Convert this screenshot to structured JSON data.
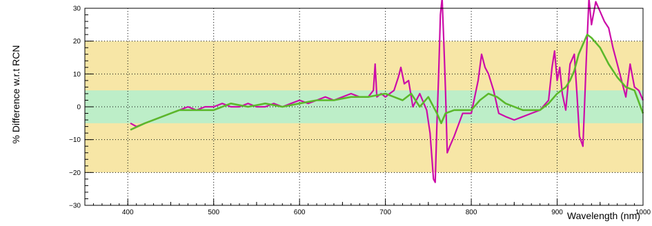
{
  "chart_data": {
    "type": "line",
    "title": "",
    "xlabel": "Wavelength (nm)",
    "ylabel": "% Difference w.r.t RCN",
    "xlim": [
      350,
      1000
    ],
    "ylim": [
      -30,
      30
    ],
    "x_ticks": [
      400,
      500,
      600,
      700,
      800,
      900,
      1000
    ],
    "y_ticks": [
      -30,
      -20,
      -10,
      0,
      10,
      20,
      30
    ],
    "grid": "dotted",
    "bands": [
      {
        "range": [
          -20,
          20
        ],
        "color": "#f7e6a6"
      },
      {
        "range": [
          -5,
          5
        ],
        "color": "#bdeec8"
      }
    ],
    "series": [
      {
        "color": "#cc0ca8",
        "x": [
          403,
          410,
          420,
          430,
          440,
          450,
          460,
          470,
          480,
          490,
          500,
          510,
          520,
          530,
          540,
          550,
          560,
          570,
          580,
          590,
          600,
          610,
          620,
          630,
          640,
          650,
          660,
          670,
          680,
          686,
          688,
          690,
          695,
          700,
          705,
          710,
          715,
          718,
          722,
          727,
          732,
          740,
          748,
          752,
          756,
          758,
          760,
          762,
          764,
          766,
          768,
          770,
          772,
          775,
          780,
          790,
          800,
          808,
          812,
          816,
          820,
          826,
          832,
          840,
          850,
          860,
          870,
          880,
          890,
          894,
          897,
          900,
          903,
          906,
          910,
          915,
          920,
          923,
          926,
          930,
          934,
          937,
          940,
          945,
          950,
          955,
          960,
          965,
          970,
          975,
          980,
          985,
          990,
          995,
          1000
        ],
        "y": [
          -5,
          -6,
          -5,
          -4,
          -3,
          -2,
          -1,
          0,
          -1,
          0,
          0,
          1,
          0,
          0,
          1,
          0,
          0,
          1,
          0,
          1,
          2,
          1,
          2,
          3,
          2,
          3,
          4,
          3,
          3,
          5,
          13,
          3,
          4,
          3,
          4,
          5,
          9,
          12,
          7,
          8,
          0,
          4,
          -1,
          -8,
          -22,
          -23,
          -5,
          10,
          28,
          33,
          20,
          5,
          -14,
          -12,
          -9,
          -2,
          -2,
          8,
          16,
          12,
          10,
          5,
          -2,
          -3,
          -4,
          -3,
          -2,
          -1,
          2,
          12,
          17,
          8,
          12,
          4,
          -1,
          13,
          16,
          4,
          -9,
          -12,
          15,
          33,
          25,
          32,
          29,
          26,
          24,
          18,
          13,
          8,
          3,
          13,
          6,
          5,
          2
        ]
      },
      {
        "color": "#5bb82b",
        "x": [
          403,
          420,
          440,
          460,
          480,
          500,
          520,
          540,
          560,
          580,
          600,
          620,
          640,
          660,
          680,
          700,
          710,
          720,
          730,
          740,
          750,
          760,
          765,
          770,
          780,
          790,
          800,
          810,
          820,
          830,
          840,
          860,
          880,
          890,
          900,
          910,
          915,
          920,
          925,
          930,
          935,
          940,
          950,
          960,
          970,
          980,
          990,
          1000
        ],
        "y": [
          -7,
          -5,
          -3,
          -1,
          -1,
          -1,
          1,
          0,
          1,
          0,
          1,
          2,
          2,
          3,
          3,
          4,
          3,
          2,
          4,
          0,
          3,
          -2,
          -5,
          -2,
          -1,
          -1,
          -1,
          2,
          4,
          3,
          1,
          -1,
          -1,
          1,
          4,
          6,
          8,
          11,
          16,
          19,
          22,
          21,
          18,
          13,
          9,
          6,
          5,
          -2
        ]
      }
    ]
  }
}
